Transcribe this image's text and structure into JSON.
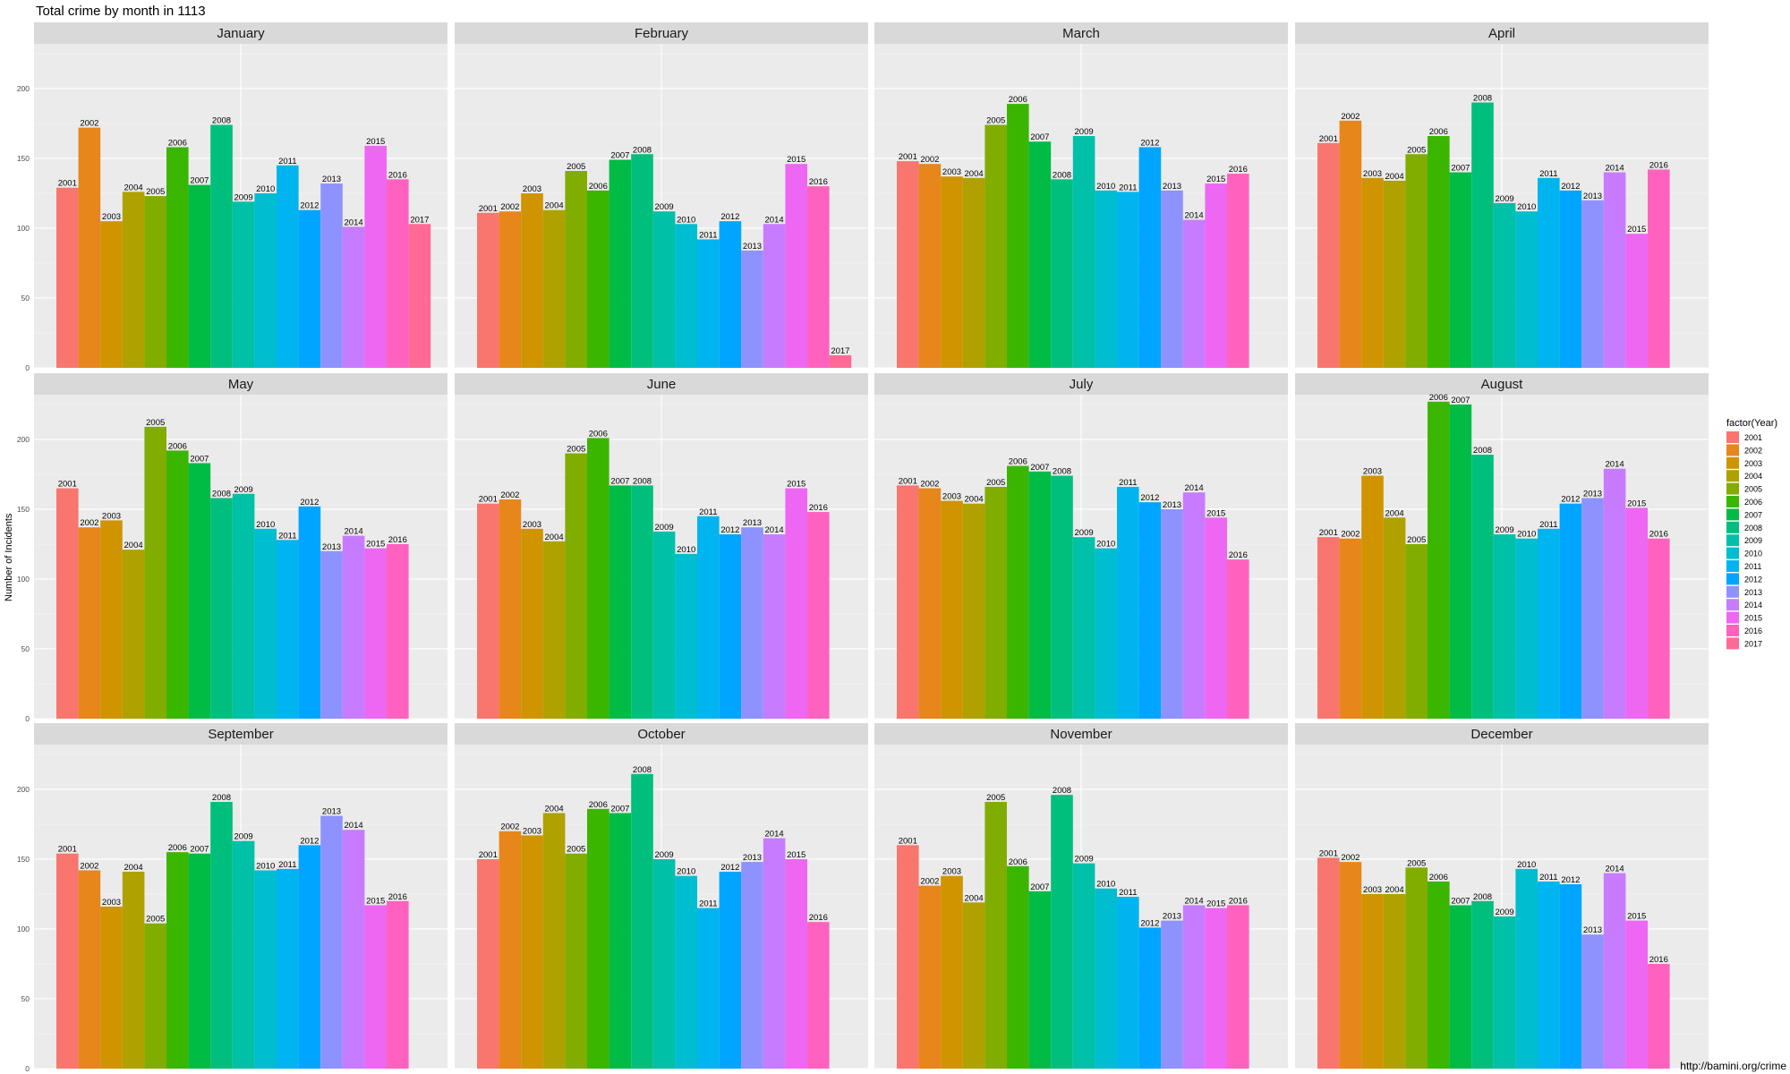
{
  "title": "Total crime by month in 1113",
  "credit": "http://bamini.org/crime",
  "legend": {
    "title": "factor(Year)",
    "items": [
      {
        "label": "2001",
        "color": "#F8766D"
      },
      {
        "label": "2002",
        "color": "#E7861B"
      },
      {
        "label": "2003",
        "color": "#CF9400"
      },
      {
        "label": "2004",
        "color": "#AFA100"
      },
      {
        "label": "2005",
        "color": "#81AD00"
      },
      {
        "label": "2006",
        "color": "#3AB600"
      },
      {
        "label": "2007",
        "color": "#00BC45"
      },
      {
        "label": "2008",
        "color": "#00BF7D"
      },
      {
        "label": "2009",
        "color": "#00C0A8"
      },
      {
        "label": "2010",
        "color": "#00BDCF"
      },
      {
        "label": "2011",
        "color": "#00B5EF"
      },
      {
        "label": "2012",
        "color": "#00A5FF"
      },
      {
        "label": "2013",
        "color": "#8E92FF"
      },
      {
        "label": "2014",
        "color": "#C77CFF"
      },
      {
        "label": "2015",
        "color": "#EE67F3"
      },
      {
        "label": "2016",
        "color": "#FF62BE"
      },
      {
        "label": "2017",
        "color": "#FF6A95"
      }
    ]
  },
  "chart_data": {
    "type": "bar",
    "title": "Total crime by month in 1113",
    "xlabel": "",
    "ylabel": "Number of Incidents",
    "ylim": [
      0,
      232
    ],
    "yticks": [
      0,
      50,
      100,
      150,
      200
    ],
    "grid": true,
    "legend_position": "right",
    "facets": [
      {
        "month": "January",
        "bars": [
          {
            "year": "2001",
            "value": 129
          },
          {
            "year": "2002",
            "value": 172
          },
          {
            "year": "2003",
            "value": 105
          },
          {
            "year": "2004",
            "value": 126
          },
          {
            "year": "2005",
            "value": 123
          },
          {
            "year": "2006",
            "value": 158
          },
          {
            "year": "2007",
            "value": 131
          },
          {
            "year": "2008",
            "value": 174
          },
          {
            "year": "2009",
            "value": 119
          },
          {
            "year": "2010",
            "value": 125
          },
          {
            "year": "2011",
            "value": 145
          },
          {
            "year": "2012",
            "value": 113
          },
          {
            "year": "2013",
            "value": 132
          },
          {
            "year": "2014",
            "value": 101
          },
          {
            "year": "2015",
            "value": 159
          },
          {
            "year": "2016",
            "value": 135
          },
          {
            "year": "2017",
            "value": 103
          }
        ]
      },
      {
        "month": "February",
        "bars": [
          {
            "year": "2001",
            "value": 111
          },
          {
            "year": "2002",
            "value": 112
          },
          {
            "year": "2003",
            "value": 125
          },
          {
            "year": "2004",
            "value": 113
          },
          {
            "year": "2005",
            "value": 141
          },
          {
            "year": "2006",
            "value": 127
          },
          {
            "year": "2007",
            "value": 149
          },
          {
            "year": "2008",
            "value": 153
          },
          {
            "year": "2009",
            "value": 112
          },
          {
            "year": "2010",
            "value": 103
          },
          {
            "year": "2011",
            "value": 92
          },
          {
            "year": "2012",
            "value": 105
          },
          {
            "year": "2013",
            "value": 84
          },
          {
            "year": "2014",
            "value": 103
          },
          {
            "year": "2015",
            "value": 146
          },
          {
            "year": "2016",
            "value": 130
          },
          {
            "year": "2017",
            "value": 9
          }
        ]
      },
      {
        "month": "March",
        "bars": [
          {
            "year": "2001",
            "value": 148
          },
          {
            "year": "2002",
            "value": 146
          },
          {
            "year": "2003",
            "value": 137
          },
          {
            "year": "2004",
            "value": 136
          },
          {
            "year": "2005",
            "value": 174
          },
          {
            "year": "2006",
            "value": 189
          },
          {
            "year": "2007",
            "value": 162
          },
          {
            "year": "2008",
            "value": 135
          },
          {
            "year": "2009",
            "value": 166
          },
          {
            "year": "2010",
            "value": 127
          },
          {
            "year": "2011",
            "value": 126
          },
          {
            "year": "2012",
            "value": 158
          },
          {
            "year": "2013",
            "value": 127
          },
          {
            "year": "2014",
            "value": 106
          },
          {
            "year": "2015",
            "value": 132
          },
          {
            "year": "2016",
            "value": 139
          }
        ]
      },
      {
        "month": "April",
        "bars": [
          {
            "year": "2001",
            "value": 161
          },
          {
            "year": "2002",
            "value": 177
          },
          {
            "year": "2003",
            "value": 136
          },
          {
            "year": "2004",
            "value": 134
          },
          {
            "year": "2005",
            "value": 153
          },
          {
            "year": "2006",
            "value": 166
          },
          {
            "year": "2007",
            "value": 140
          },
          {
            "year": "2008",
            "value": 190
          },
          {
            "year": "2009",
            "value": 118
          },
          {
            "year": "2010",
            "value": 112
          },
          {
            "year": "2011",
            "value": 136
          },
          {
            "year": "2012",
            "value": 127
          },
          {
            "year": "2013",
            "value": 120
          },
          {
            "year": "2014",
            "value": 140
          },
          {
            "year": "2015",
            "value": 96
          },
          {
            "year": "2016",
            "value": 142
          }
        ]
      },
      {
        "month": "May",
        "bars": [
          {
            "year": "2001",
            "value": 165
          },
          {
            "year": "2002",
            "value": 137
          },
          {
            "year": "2003",
            "value": 142
          },
          {
            "year": "2004",
            "value": 121
          },
          {
            "year": "2005",
            "value": 209
          },
          {
            "year": "2006",
            "value": 192
          },
          {
            "year": "2007",
            "value": 183
          },
          {
            "year": "2008",
            "value": 158
          },
          {
            "year": "2009",
            "value": 161
          },
          {
            "year": "2010",
            "value": 136
          },
          {
            "year": "2011",
            "value": 128
          },
          {
            "year": "2012",
            "value": 152
          },
          {
            "year": "2013",
            "value": 120
          },
          {
            "year": "2014",
            "value": 131
          },
          {
            "year": "2015",
            "value": 122
          },
          {
            "year": "2016",
            "value": 125
          }
        ]
      },
      {
        "month": "June",
        "bars": [
          {
            "year": "2001",
            "value": 154
          },
          {
            "year": "2002",
            "value": 157
          },
          {
            "year": "2003",
            "value": 136
          },
          {
            "year": "2004",
            "value": 127
          },
          {
            "year": "2005",
            "value": 190
          },
          {
            "year": "2006",
            "value": 201
          },
          {
            "year": "2007",
            "value": 167
          },
          {
            "year": "2008",
            "value": 167
          },
          {
            "year": "2009",
            "value": 134
          },
          {
            "year": "2010",
            "value": 118
          },
          {
            "year": "2011",
            "value": 145
          },
          {
            "year": "2012",
            "value": 132
          },
          {
            "year": "2013",
            "value": 137
          },
          {
            "year": "2014",
            "value": 132
          },
          {
            "year": "2015",
            "value": 165
          },
          {
            "year": "2016",
            "value": 148
          }
        ]
      },
      {
        "month": "July",
        "bars": [
          {
            "year": "2001",
            "value": 167
          },
          {
            "year": "2002",
            "value": 165
          },
          {
            "year": "2003",
            "value": 156
          },
          {
            "year": "2004",
            "value": 154
          },
          {
            "year": "2005",
            "value": 166
          },
          {
            "year": "2006",
            "value": 181
          },
          {
            "year": "2007",
            "value": 177
          },
          {
            "year": "2008",
            "value": 174
          },
          {
            "year": "2009",
            "value": 130
          },
          {
            "year": "2010",
            "value": 122
          },
          {
            "year": "2011",
            "value": 166
          },
          {
            "year": "2012",
            "value": 155
          },
          {
            "year": "2013",
            "value": 150
          },
          {
            "year": "2014",
            "value": 162
          },
          {
            "year": "2015",
            "value": 144
          },
          {
            "year": "2016",
            "value": 114
          }
        ]
      },
      {
        "month": "August",
        "bars": [
          {
            "year": "2001",
            "value": 130
          },
          {
            "year": "2002",
            "value": 129
          },
          {
            "year": "2003",
            "value": 174
          },
          {
            "year": "2004",
            "value": 144
          },
          {
            "year": "2005",
            "value": 125
          },
          {
            "year": "2006",
            "value": 227
          },
          {
            "year": "2007",
            "value": 225
          },
          {
            "year": "2008",
            "value": 189
          },
          {
            "year": "2009",
            "value": 132
          },
          {
            "year": "2010",
            "value": 129
          },
          {
            "year": "2011",
            "value": 136
          },
          {
            "year": "2012",
            "value": 154
          },
          {
            "year": "2013",
            "value": 158
          },
          {
            "year": "2014",
            "value": 179
          },
          {
            "year": "2015",
            "value": 151
          },
          {
            "year": "2016",
            "value": 129
          }
        ]
      },
      {
        "month": "September",
        "bars": [
          {
            "year": "2001",
            "value": 154
          },
          {
            "year": "2002",
            "value": 142
          },
          {
            "year": "2003",
            "value": 116
          },
          {
            "year": "2004",
            "value": 141
          },
          {
            "year": "2005",
            "value": 104
          },
          {
            "year": "2006",
            "value": 155
          },
          {
            "year": "2007",
            "value": 154
          },
          {
            "year": "2008",
            "value": 191
          },
          {
            "year": "2009",
            "value": 163
          },
          {
            "year": "2010",
            "value": 142
          },
          {
            "year": "2011",
            "value": 143
          },
          {
            "year": "2012",
            "value": 160
          },
          {
            "year": "2013",
            "value": 181
          },
          {
            "year": "2014",
            "value": 171
          },
          {
            "year": "2015",
            "value": 117
          },
          {
            "year": "2016",
            "value": 120
          }
        ]
      },
      {
        "month": "October",
        "bars": [
          {
            "year": "2001",
            "value": 150
          },
          {
            "year": "2002",
            "value": 170
          },
          {
            "year": "2003",
            "value": 167
          },
          {
            "year": "2004",
            "value": 183
          },
          {
            "year": "2005",
            "value": 154
          },
          {
            "year": "2006",
            "value": 186
          },
          {
            "year": "2007",
            "value": 183
          },
          {
            "year": "2008",
            "value": 211
          },
          {
            "year": "2009",
            "value": 150
          },
          {
            "year": "2010",
            "value": 138
          },
          {
            "year": "2011",
            "value": 115
          },
          {
            "year": "2012",
            "value": 141
          },
          {
            "year": "2013",
            "value": 148
          },
          {
            "year": "2014",
            "value": 165
          },
          {
            "year": "2015",
            "value": 150
          },
          {
            "year": "2016",
            "value": 105
          }
        ]
      },
      {
        "month": "November",
        "bars": [
          {
            "year": "2001",
            "value": 160
          },
          {
            "year": "2002",
            "value": 131
          },
          {
            "year": "2003",
            "value": 138
          },
          {
            "year": "2004",
            "value": 119
          },
          {
            "year": "2005",
            "value": 191
          },
          {
            "year": "2006",
            "value": 145
          },
          {
            "year": "2007",
            "value": 127
          },
          {
            "year": "2008",
            "value": 196
          },
          {
            "year": "2009",
            "value": 147
          },
          {
            "year": "2010",
            "value": 129
          },
          {
            "year": "2011",
            "value": 123
          },
          {
            "year": "2012",
            "value": 101
          },
          {
            "year": "2013",
            "value": 106
          },
          {
            "year": "2014",
            "value": 117
          },
          {
            "year": "2015",
            "value": 115
          },
          {
            "year": "2016",
            "value": 117
          }
        ]
      },
      {
        "month": "December",
        "bars": [
          {
            "year": "2001",
            "value": 151
          },
          {
            "year": "2002",
            "value": 148
          },
          {
            "year": "2003",
            "value": 125
          },
          {
            "year": "2004",
            "value": 125
          },
          {
            "year": "2005",
            "value": 144
          },
          {
            "year": "2006",
            "value": 134
          },
          {
            "year": "2007",
            "value": 117
          },
          {
            "year": "2008",
            "value": 120
          },
          {
            "year": "2009",
            "value": 109
          },
          {
            "year": "2010",
            "value": 143
          },
          {
            "year": "2011",
            "value": 134
          },
          {
            "year": "2012",
            "value": 132
          },
          {
            "year": "2013",
            "value": 96
          },
          {
            "year": "2014",
            "value": 140
          },
          {
            "year": "2015",
            "value": 106
          },
          {
            "year": "2016",
            "value": 75
          }
        ]
      }
    ]
  }
}
